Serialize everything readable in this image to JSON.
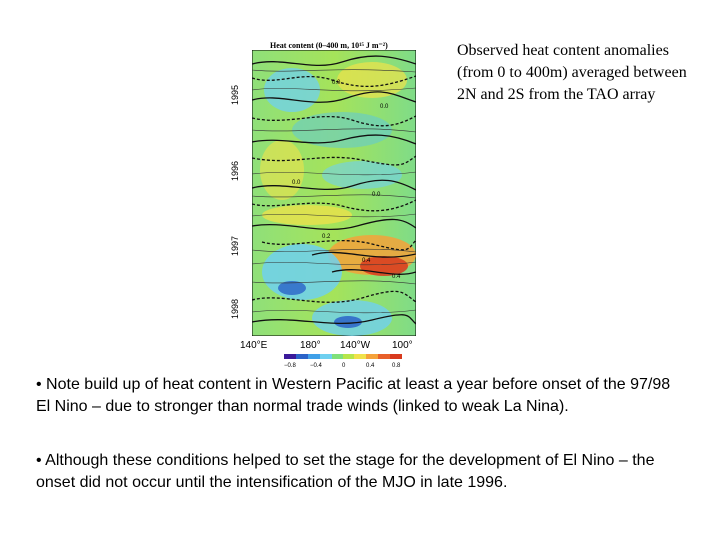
{
  "figure": {
    "title": "Heat content (0–400 m, 10¹⁵ J m⁻²)",
    "years": [
      "1995",
      "1996",
      "1997",
      "1998"
    ],
    "longitudes": [
      "140°E",
      "180°",
      "140°W",
      "100°"
    ],
    "colorbar_ticks": [
      "−0.8",
      "−0.4",
      "0",
      "0.4",
      "0.8"
    ],
    "contour_labels": [
      "0.0",
      "0.0",
      "0.0",
      "0.0",
      "0.2",
      "0.4",
      "0.4"
    ],
    "colors": {
      "strong_negative": "#2b63c8",
      "negative": "#6fd0f0",
      "neutral": "#7fe07a",
      "positive": "#f0e24a",
      "strong_positive": "#d83a1e"
    }
  },
  "caption": "Observed heat content anomalies (from 0 to 400m) averaged between 2N and 2S from the TAO array",
  "bullets": [
    "• Note build up of heat content in Western Pacific at least a year before onset of the 97/98 El Nino – due to stronger than normal trade winds (linked to weak La Nina).",
    "• Although these conditions helped to set the stage for the development of El Nino – the onset did not occur until the intensification of the MJO in late 1996."
  ]
}
